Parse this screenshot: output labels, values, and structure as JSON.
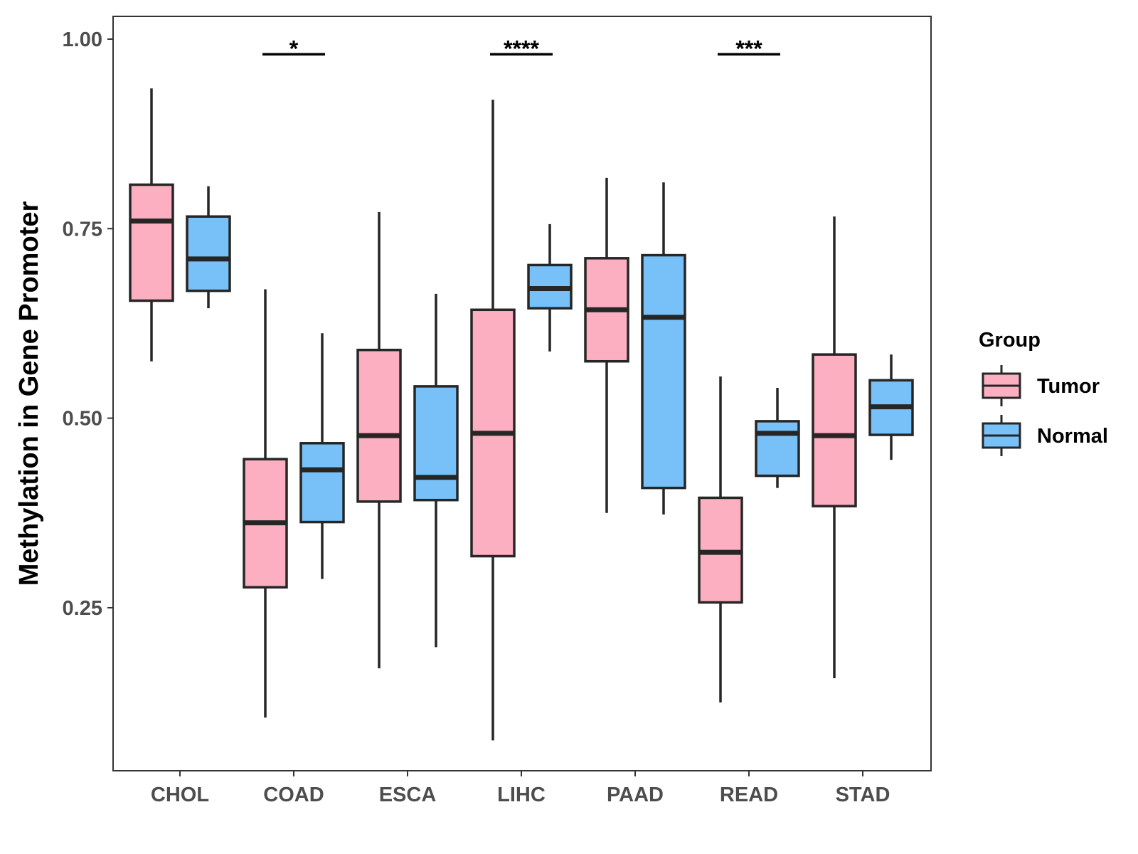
{
  "chart_data": {
    "type": "boxplot",
    "title": "",
    "xlabel": "",
    "ylabel": "Methylation in Gene Promoter",
    "ylim": [
      0.035,
      1.03
    ],
    "yticks": [
      0.25,
      0.5,
      0.75,
      1.0
    ],
    "ytick_labels": [
      "0.25",
      "0.50",
      "0.75",
      "1.00"
    ],
    "categories": [
      "CHOL",
      "COAD",
      "ESCA",
      "LIHC",
      "PAAD",
      "READ",
      "STAD"
    ],
    "legend": {
      "title": "Group",
      "position": "right",
      "entries": [
        {
          "name": "Tumor",
          "color": "#FBAFC0"
        },
        {
          "name": "Normal",
          "color": "#77C0F8"
        }
      ]
    },
    "series": [
      {
        "name": "Tumor",
        "color": "#FBAFC0",
        "boxes": [
          {
            "category": "CHOL",
            "min": 0.575,
            "q1": 0.655,
            "median": 0.76,
            "q3": 0.808,
            "max": 0.935
          },
          {
            "category": "COAD",
            "min": 0.105,
            "q1": 0.277,
            "median": 0.362,
            "q3": 0.446,
            "max": 0.67
          },
          {
            "category": "ESCA",
            "min": 0.17,
            "q1": 0.39,
            "median": 0.477,
            "q3": 0.59,
            "max": 0.772
          },
          {
            "category": "LIHC",
            "min": 0.075,
            "q1": 0.318,
            "median": 0.48,
            "q3": 0.643,
            "max": 0.92
          },
          {
            "category": "PAAD",
            "min": 0.375,
            "q1": 0.575,
            "median": 0.643,
            "q3": 0.711,
            "max": 0.817
          },
          {
            "category": "READ",
            "min": 0.125,
            "q1": 0.257,
            "median": 0.323,
            "q3": 0.395,
            "max": 0.555
          },
          {
            "category": "STAD",
            "min": 0.157,
            "q1": 0.384,
            "median": 0.477,
            "q3": 0.584,
            "max": 0.766
          }
        ]
      },
      {
        "name": "Normal",
        "color": "#77C0F8",
        "boxes": [
          {
            "category": "CHOL",
            "min": 0.645,
            "q1": 0.668,
            "median": 0.71,
            "q3": 0.766,
            "max": 0.806
          },
          {
            "category": "COAD",
            "min": 0.288,
            "q1": 0.363,
            "median": 0.432,
            "q3": 0.467,
            "max": 0.612
          },
          {
            "category": "ESCA",
            "min": 0.198,
            "q1": 0.392,
            "median": 0.422,
            "q3": 0.542,
            "max": 0.664
          },
          {
            "category": "LIHC",
            "min": 0.588,
            "q1": 0.645,
            "median": 0.671,
            "q3": 0.702,
            "max": 0.756
          },
          {
            "category": "PAAD",
            "min": 0.373,
            "q1": 0.408,
            "median": 0.633,
            "q3": 0.715,
            "max": 0.811
          },
          {
            "category": "READ",
            "min": 0.408,
            "q1": 0.424,
            "median": 0.48,
            "q3": 0.496,
            "max": 0.54
          },
          {
            "category": "STAD",
            "min": 0.445,
            "q1": 0.478,
            "median": 0.515,
            "q3": 0.55,
            "max": 0.584
          }
        ]
      }
    ],
    "annotations": [
      {
        "category": "COAD",
        "label": "*",
        "y": 0.98
      },
      {
        "category": "LIHC",
        "label": "****",
        "y": 0.98
      },
      {
        "category": "READ",
        "label": "***",
        "y": 0.98
      }
    ]
  }
}
